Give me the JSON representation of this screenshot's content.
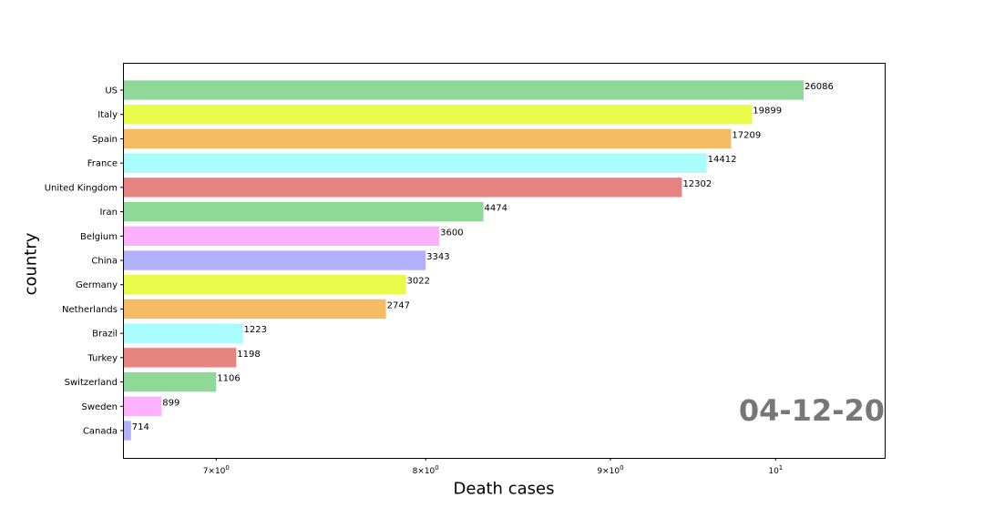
{
  "chart_data": {
    "type": "bar",
    "orientation": "horizontal",
    "xlabel": "Death cases",
    "ylabel": "country",
    "x_scale": "log",
    "xlim": [
      6.6,
      10.72
    ],
    "x_ticks": [
      {
        "value": 7,
        "base": "7",
        "exponent": "0"
      },
      {
        "value": 8,
        "base": "8",
        "exponent": "0"
      },
      {
        "value": 9,
        "base": "9",
        "exponent": "0"
      },
      {
        "value": 10,
        "base": "10",
        "exponent": "1"
      }
    ],
    "date_label": "04-12-20",
    "categories": [
      "US",
      "Italy",
      "Spain",
      "France",
      "United Kingdom",
      "Iran",
      "Belgium",
      "China",
      "Germany",
      "Netherlands",
      "Brazil",
      "Turkey",
      "Switzerland",
      "Sweden",
      "Canada"
    ],
    "values": [
      26086,
      19899,
      17209,
      14412,
      12302,
      4474,
      3600,
      3343,
      3022,
      2747,
      1223,
      1198,
      1106,
      899,
      714
    ],
    "value_labels": [
      "26086",
      "19899",
      "17209",
      "14412",
      "12302",
      "4474",
      "3600",
      "3343",
      "3022",
      "2747",
      "1223",
      "1198",
      "1106",
      "899",
      "714"
    ],
    "bar_extent": [
      10.18,
      9.85,
      9.72,
      9.57,
      9.42,
      8.3,
      8.07,
      8.0,
      7.9,
      7.8,
      7.12,
      7.09,
      7.0,
      6.76,
      6.63
    ],
    "colors": [
      "#90d898",
      "#e8fa4a",
      "#f5bb62",
      "#a8fcfc",
      "#e58480",
      "#90d898",
      "#fdb0fd",
      "#b0b0fb",
      "#e8fa4a",
      "#f5bb62",
      "#a8fcfc",
      "#e58480",
      "#90d898",
      "#fdb0fd",
      "#b0b0fb"
    ],
    "grid": false,
    "legend": "none"
  }
}
